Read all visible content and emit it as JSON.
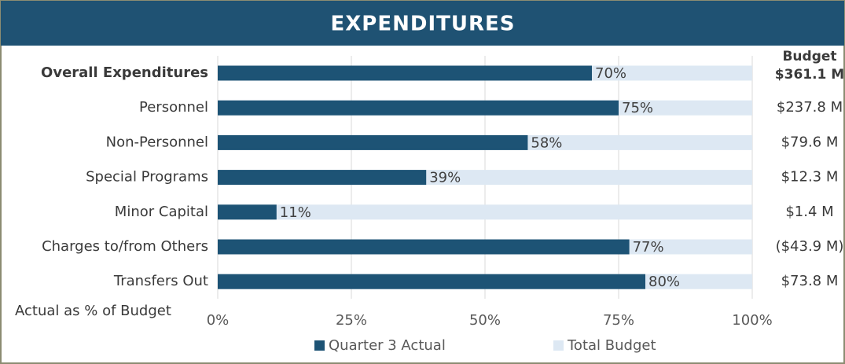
{
  "chart_data": {
    "type": "bar",
    "title": "EXPENDITURES",
    "x_label": "Actual as % of Budget",
    "categories": [
      "Overall Expenditures",
      "Personnel",
      "Non-Personnel",
      "Special Programs",
      "Minor Capital",
      "Charges to/from Others",
      "Transfers Out"
    ],
    "series": [
      {
        "name": "Quarter 3 Actual",
        "color": "#1d5375",
        "values": [
          70,
          75,
          58,
          39,
          11,
          77,
          80
        ],
        "value_labels": [
          "70%",
          "75%",
          "58%",
          "39%",
          "11%",
          "77%",
          "80%"
        ]
      },
      {
        "name": "Total Budget",
        "color": "#dde8f3",
        "values": [
          100,
          100,
          100,
          100,
          100,
          100,
          100
        ]
      }
    ],
    "budget_column": {
      "title": "Budget",
      "labels": [
        "$361.1 M",
        "$237.8 M",
        "$79.6 M",
        "$12.3 M",
        "$1.4 M",
        "($43.9 M)",
        "$73.8 M"
      ]
    },
    "xlim": [
      0,
      100
    ],
    "xticks": [
      {
        "value": 0,
        "label": "0%"
      },
      {
        "value": 25,
        "label": "25%"
      },
      {
        "value": 50,
        "label": "50%"
      },
      {
        "value": 75,
        "label": "75%"
      },
      {
        "value": 100,
        "label": "100%"
      }
    ],
    "grid": true
  }
}
